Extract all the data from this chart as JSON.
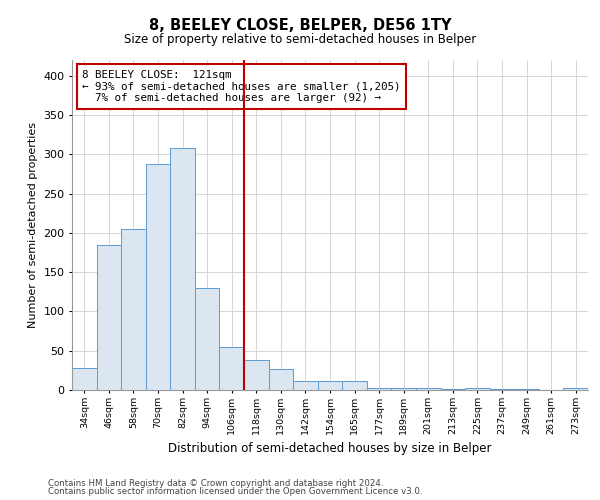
{
  "title": "8, BEELEY CLOSE, BELPER, DE56 1TY",
  "subtitle": "Size of property relative to semi-detached houses in Belper",
  "xlabel": "Distribution of semi-detached houses by size in Belper",
  "ylabel": "Number of semi-detached properties",
  "footnote1": "Contains HM Land Registry data © Crown copyright and database right 2024.",
  "footnote2": "Contains public sector information licensed under the Open Government Licence v3.0.",
  "annotation_title": "8 BEELEY CLOSE:  121sqm",
  "annotation_line1": "← 93% of semi-detached houses are smaller (1,205)",
  "annotation_line2": "  7% of semi-detached houses are larger (92) →",
  "bar_edge_color": "#5b9bd5",
  "bar_face_color": "#dce6f1",
  "marker_line_color": "#c00000",
  "annotation_box_color": "#c00000",
  "categories": [
    "34sqm",
    "46sqm",
    "58sqm",
    "70sqm",
    "82sqm",
    "94sqm",
    "106sqm",
    "118sqm",
    "130sqm",
    "142sqm",
    "154sqm",
    "165sqm",
    "177sqm",
    "189sqm",
    "201sqm",
    "213sqm",
    "225sqm",
    "237sqm",
    "249sqm",
    "261sqm",
    "273sqm"
  ],
  "values": [
    28,
    185,
    205,
    288,
    308,
    130,
    55,
    38,
    27,
    12,
    11,
    11,
    3,
    3,
    3,
    1,
    2,
    1,
    1,
    0,
    2
  ],
  "ylim": [
    0,
    420
  ],
  "yticks": [
    0,
    50,
    100,
    150,
    200,
    250,
    300,
    350,
    400
  ],
  "marker_bin_index": 7,
  "fig_bg": "#ffffff",
  "grid_color": "#d0d0d0"
}
